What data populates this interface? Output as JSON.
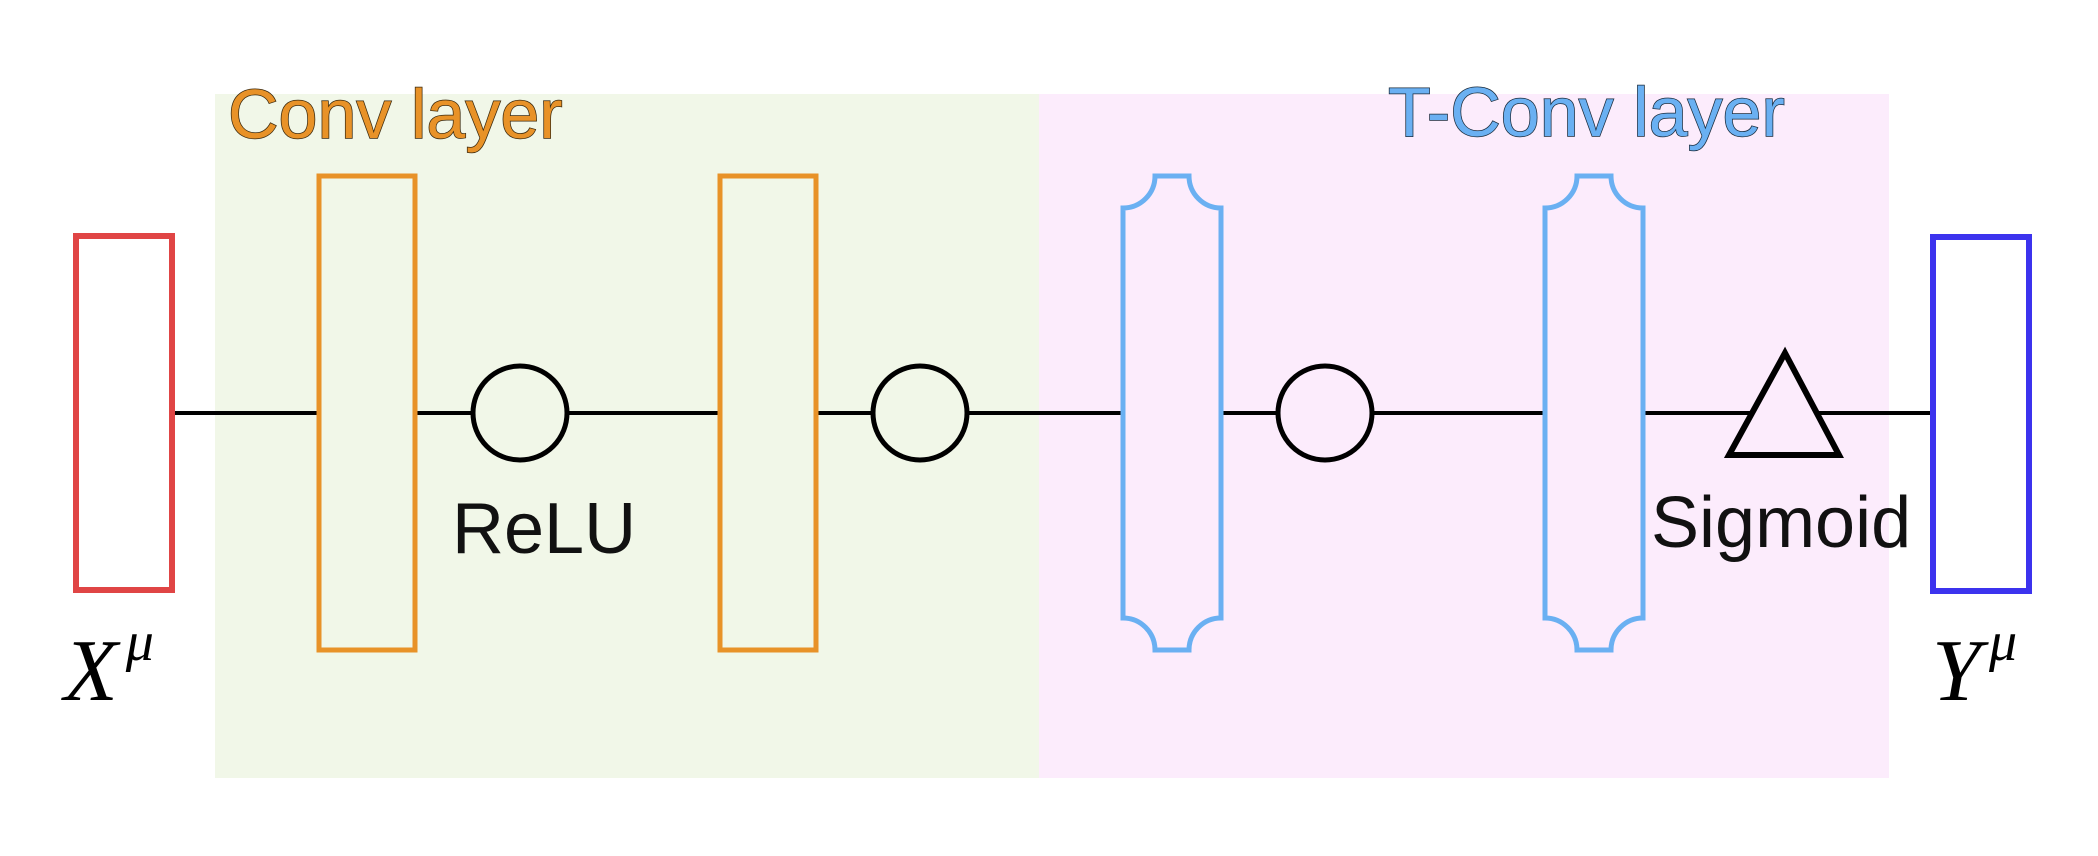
{
  "colors": {
    "background": "#ffffff",
    "conv_region": "#f1f7e8",
    "tconv_region": "#fcecfc",
    "input": "#e04545",
    "conv": "#e89228",
    "tconv": "#6ab0f2",
    "output": "#3c33ee",
    "line": "#000000",
    "conv_title": "#e89228",
    "tconv_title": "#6ab0f2",
    "title_stroke": "#3a2a10"
  },
  "regions": {
    "conv": {
      "title": "Conv layer"
    },
    "tconv": {
      "title": "T-Conv layer"
    }
  },
  "nodes": {
    "input": {
      "label_base": "X",
      "label_sup": "μ",
      "icon": "input-vector-rectangle"
    },
    "conv1": {
      "icon": "conv-rectangle"
    },
    "relu1": {
      "label": "ReLU",
      "icon": "relu-circle"
    },
    "conv2": {
      "icon": "conv-rectangle"
    },
    "act2": {
      "icon": "activation-circle"
    },
    "tconv1": {
      "icon": "tconv-concave-rectangle"
    },
    "act3": {
      "icon": "activation-circle"
    },
    "tconv2": {
      "icon": "tconv-concave-rectangle"
    },
    "sigmoid": {
      "label": "Sigmoid",
      "icon": "sigmoid-triangle"
    },
    "output": {
      "label_base": "Y",
      "label_sup": "μ",
      "icon": "output-vector-rectangle"
    }
  }
}
